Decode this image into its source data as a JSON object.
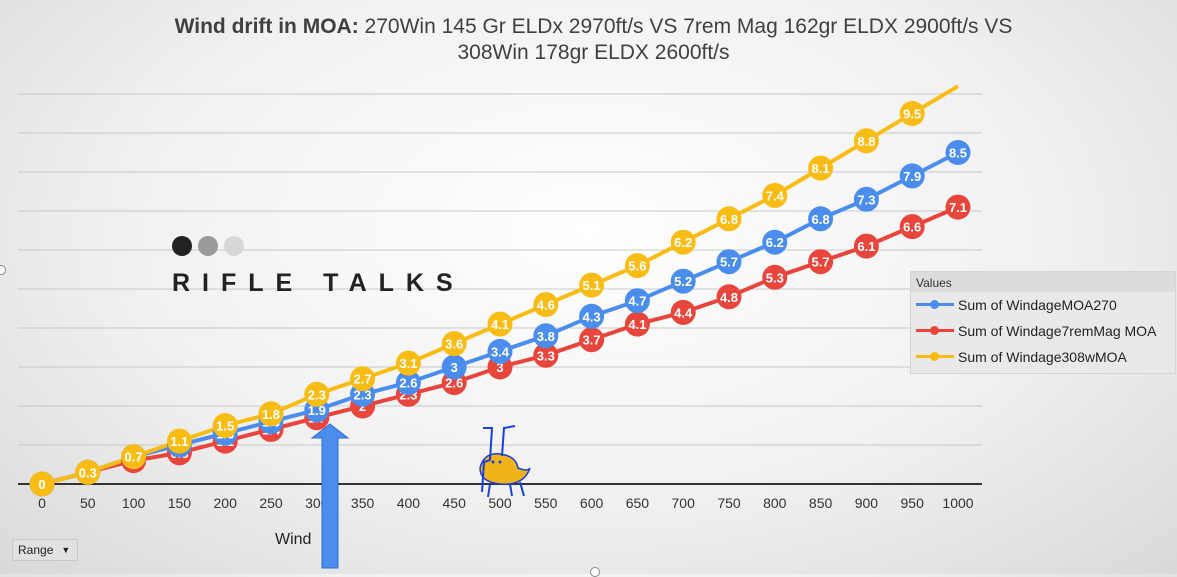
{
  "title": {
    "bold": "Wind drift in MOA:",
    "line1": " 270Win 145 Gr ELDx 2970ft/s VS 7rem Mag 162gr ELDX 2900ft/s VS",
    "line2": "308Win 178gr ELDX 2600ft/s"
  },
  "logo": {
    "text": "RIFLE TALKS"
  },
  "legend": {
    "title": "Values",
    "items": [
      {
        "label": "Sum of WindageMOA270",
        "color": "#4a8ded"
      },
      {
        "label": "Sum of Windage7remMag MOA",
        "color": "#e8453c"
      },
      {
        "label": "Sum of Windage308wMOA",
        "color": "#f9bc15"
      }
    ]
  },
  "range_button": {
    "label": "Range"
  },
  "annotation": {
    "label": "Wind"
  },
  "chart_data": {
    "type": "line",
    "categories": [
      "0",
      "50",
      "100",
      "150",
      "200",
      "250",
      "300",
      "350",
      "400",
      "450",
      "500",
      "550",
      "600",
      "650",
      "700",
      "750",
      "800",
      "850",
      "900",
      "950",
      "1000"
    ],
    "series": [
      {
        "name": "Sum of WindageMOA270",
        "color": "#4a8ded",
        "values": [
          0,
          0.3,
          0.7,
          1.0,
          1.3,
          1.6,
          1.9,
          2.3,
          2.6,
          3.0,
          3.4,
          3.8,
          4.3,
          4.7,
          5.2,
          5.7,
          6.2,
          6.8,
          7.3,
          7.9,
          8.5
        ]
      },
      {
        "name": "Sum of Windage7remMag MOA",
        "color": "#e8453c",
        "values": [
          0,
          0.3,
          0.6,
          0.8,
          1.1,
          1.4,
          1.7,
          2.0,
          2.3,
          2.6,
          3.0,
          3.3,
          3.7,
          4.1,
          4.4,
          4.8,
          5.3,
          5.7,
          6.1,
          6.6,
          7.1
        ]
      },
      {
        "name": "Sum of Windage308wMOA",
        "color": "#f9bc15",
        "values": [
          0,
          0.3,
          0.7,
          1.1,
          1.5,
          1.8,
          2.3,
          2.7,
          3.1,
          3.6,
          4.1,
          4.6,
          5.1,
          5.6,
          6.2,
          6.8,
          7.4,
          8.1,
          8.8,
          9.5,
          10.2
        ]
      }
    ],
    "labels": [
      [
        "0",
        "0.3",
        "0.7",
        "1",
        "1.3",
        "1.6",
        "1.9",
        "2.3",
        "2.6",
        "3",
        "3.4",
        "3.8",
        "4.3",
        "4.7",
        "5.2",
        "5.7",
        "6.2",
        "6.8",
        "7.3",
        "7.9",
        "8.5"
      ],
      [
        "",
        "",
        "0.6",
        "0.8",
        "1.1",
        "1.4",
        "1.7",
        "2",
        "2.3",
        "2.6",
        "3",
        "3.3",
        "3.7",
        "4.1",
        "4.4",
        "4.8",
        "5.3",
        "5.7",
        "6.1",
        "6.6",
        "7.1"
      ],
      [
        "0",
        "0.3",
        "0.7",
        "1.1",
        "1.5",
        "1.8",
        "2.3",
        "2.7",
        "3.1",
        "3.6",
        "4.1",
        "4.6",
        "5.1",
        "5.6",
        "6.2",
        "6.8",
        "7.4",
        "8.1",
        "8.8",
        "9.5",
        ""
      ]
    ],
    "ylim": [
      0,
      10.5
    ],
    "grid": true,
    "legend_position": "right"
  }
}
